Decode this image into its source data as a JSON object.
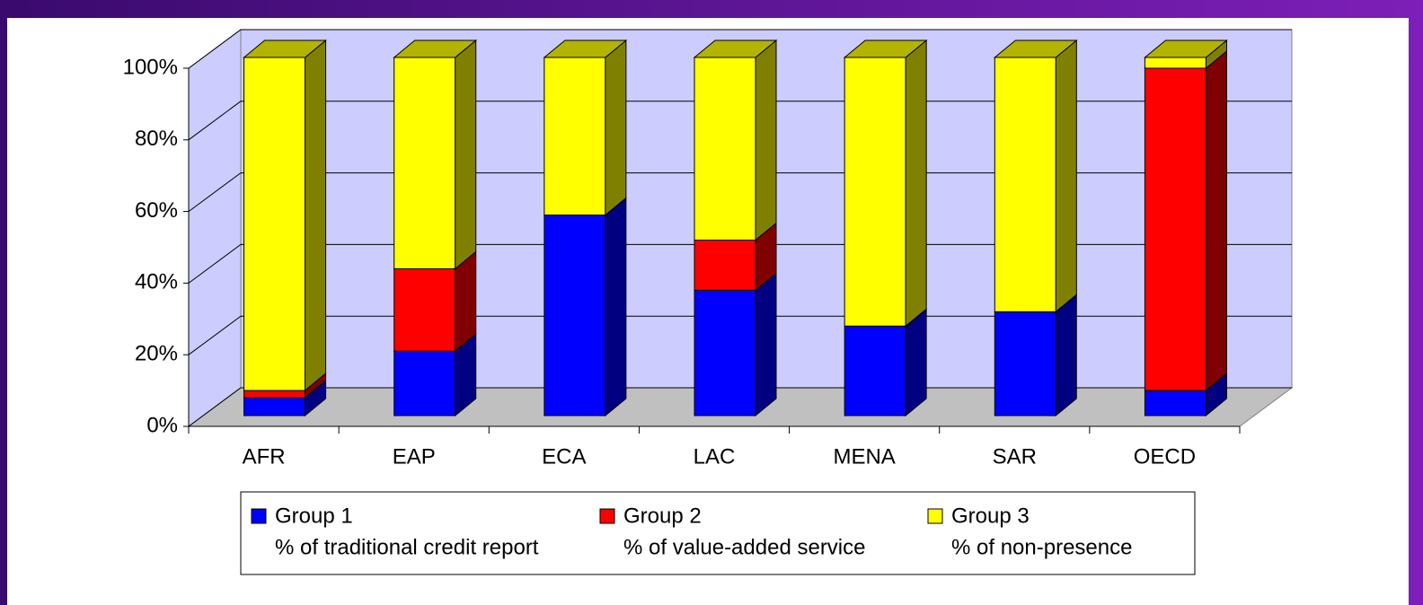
{
  "chart_data": {
    "type": "bar3d_stacked",
    "categories": [
      "AFR",
      "EAP",
      "ECA",
      "LAC",
      "MENA",
      "SAR",
      "OECD"
    ],
    "series": [
      {
        "name": "Group 1",
        "note": "% of traditional credit report",
        "color": "#0000ff",
        "values": [
          5,
          18,
          56,
          35,
          25,
          29,
          7
        ]
      },
      {
        "name": "Group 2",
        "note": "% of value-added service",
        "color": "#ff0000",
        "values": [
          2,
          23,
          0,
          14,
          0,
          0,
          90
        ]
      },
      {
        "name": "Group 3",
        "note": "% of non-presence",
        "color": "#ffff00",
        "values": [
          93,
          59,
          44,
          51,
          75,
          71,
          3
        ]
      }
    ],
    "ylim": [
      0,
      100
    ],
    "yticks": [
      {
        "value": 0,
        "label": "0%"
      },
      {
        "value": 20,
        "label": "20%"
      },
      {
        "value": 40,
        "label": "40%"
      },
      {
        "value": 60,
        "label": "60%"
      },
      {
        "value": 80,
        "label": "80%"
      },
      {
        "value": 100,
        "label": "100%"
      }
    ],
    "grid": true,
    "legend": "bottom"
  }
}
